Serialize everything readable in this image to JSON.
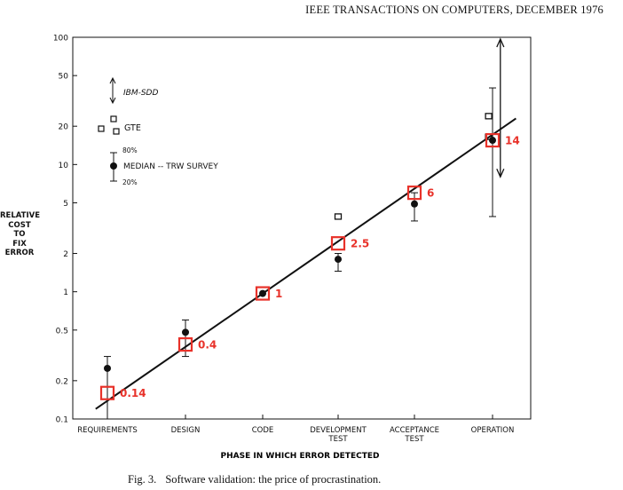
{
  "page": {
    "header": "IEEE TRANSACTIONS ON COMPUTERS, DECEMBER 1976",
    "caption_number": "Fig. 3.",
    "caption_text": "Software validation: the price of procrastination."
  },
  "chart_data": {
    "type": "scatter",
    "title": "",
    "xlabel": "PHASE IN WHICH ERROR DETECTED",
    "ylabel_lines": [
      "RELATIVE",
      "COST",
      "TO",
      "FIX",
      "ERROR"
    ],
    "y_scale": "log",
    "ylim": [
      0.1,
      100
    ],
    "y_ticks": [
      0.1,
      0.2,
      0.5,
      1,
      2,
      5,
      10,
      20,
      50,
      100
    ],
    "y_tick_labels": [
      "0.1",
      "0.2",
      "0.5",
      "1",
      "2",
      "5",
      "10",
      "20",
      "50",
      "100"
    ],
    "categories": [
      [
        "REQUIREMENTS"
      ],
      [
        "DESIGN"
      ],
      [
        "CODE"
      ],
      [
        "DEVELOPMENT",
        "TEST"
      ],
      [
        "ACCEPTANCE",
        "TEST"
      ],
      [
        "OPERATION"
      ]
    ],
    "legend": {
      "placement": "top-left",
      "ibm_label": "IBM-SDD",
      "gte_label": "GTE",
      "median_label": "MEDIAN -- TRW SURVEY",
      "upper_label": "80%",
      "lower_label": "20%"
    },
    "trend_line": {
      "x": [
        -0.15,
        5.3
      ],
      "y": [
        0.12,
        23
      ]
    },
    "series": [
      {
        "name": "MEDIAN -- TRW SURVEY",
        "points": [
          {
            "x": 0,
            "y": 0.25,
            "low": 0.1,
            "high": 0.31
          },
          {
            "x": 1,
            "y": 0.48,
            "low": 0.31,
            "high": 0.6
          },
          {
            "x": 2,
            "y": 0.97
          },
          {
            "x": 3,
            "y": 1.8,
            "low": 1.45,
            "high": 2.0
          },
          {
            "x": 4,
            "y": 4.9,
            "low": 3.6,
            "high": 6.0
          },
          {
            "x": 5,
            "y": 15.5,
            "low": 3.9,
            "high": 40
          }
        ]
      },
      {
        "name": "GTE",
        "points": [
          {
            "x": 3,
            "y": 3.9
          },
          {
            "x": 4.95,
            "y": 24
          },
          {
            "x": 4.95,
            "y": 16.5
          }
        ]
      },
      {
        "name": "IBM-SDD",
        "range": {
          "x": 5.1,
          "low": 8,
          "high": 100
        }
      },
      {
        "name": "annotations",
        "points": [
          {
            "x": 0,
            "y": 0.16,
            "label": "0.14"
          },
          {
            "x": 1,
            "y": 0.385,
            "label": "0.4"
          },
          {
            "x": 2,
            "y": 0.97,
            "label": "1"
          },
          {
            "x": 3,
            "y": 2.4,
            "label": "2.5"
          },
          {
            "x": 4,
            "y": 6.0,
            "label": "6"
          },
          {
            "x": 5,
            "y": 15.5,
            "label": "14"
          }
        ]
      }
    ]
  }
}
